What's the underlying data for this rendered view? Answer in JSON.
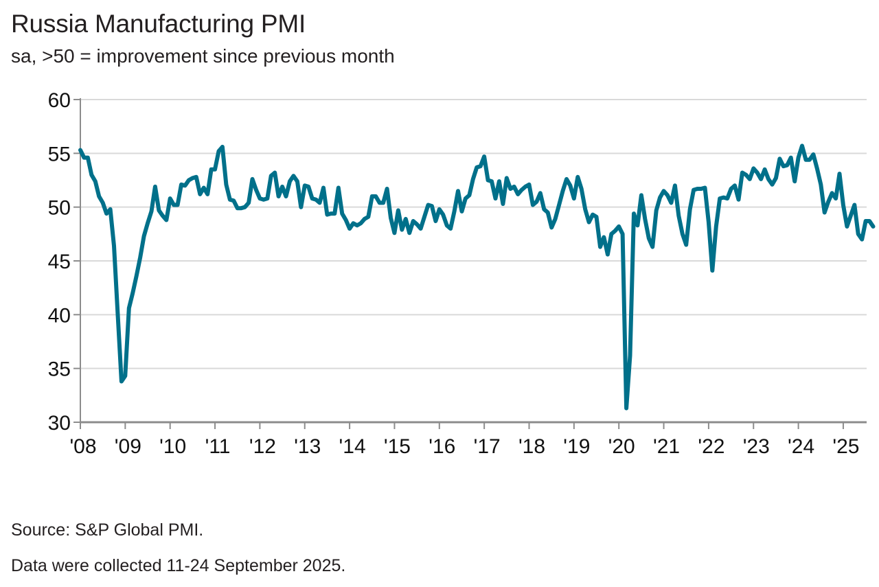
{
  "header": {
    "title": "Russia Manufacturing PMI",
    "subtitle": "sa, >50 = improvement since previous month"
  },
  "footer": {
    "source": "Source: S&P Global PMI.",
    "collection_note": "Data were collected 11-24 September 2025."
  },
  "colors": {
    "series_line": "#00708a",
    "gridline": "#d9d9d9",
    "axis": "#8c8c8c",
    "text": "#231f20"
  },
  "chart_data": {
    "type": "line",
    "title": "Russia Manufacturing PMI",
    "subtitle": "sa, >50 = improvement since previous month",
    "xlabel": "",
    "ylabel": "",
    "ylim": [
      30,
      60
    ],
    "yticks": [
      30,
      35,
      40,
      45,
      50,
      55,
      60
    ],
    "ytick_labels": [
      "30",
      "35",
      "40",
      "45",
      "50",
      "55",
      "60"
    ],
    "xtick_labels": [
      "'08",
      "'09",
      "'10",
      "'11",
      "'12",
      "'13",
      "'14",
      "'15",
      "'16",
      "'17",
      "'18",
      "'19",
      "'20",
      "'21",
      "'22",
      "'23",
      "'24",
      "'25"
    ],
    "x_start": "2008-01",
    "x_end": "2025-09",
    "frequency": "monthly",
    "grid": "horizontal",
    "legend": "none",
    "series": [
      {
        "name": "Russia Manufacturing PMI",
        "values": [
          55.3,
          54.6,
          54.6,
          53.0,
          52.4,
          51.0,
          50.4,
          49.4,
          49.8,
          46.4,
          40.0,
          33.8,
          34.3,
          40.6,
          42.0,
          43.6,
          45.3,
          47.3,
          48.5,
          49.6,
          51.9,
          49.7,
          49.2,
          48.8,
          50.8,
          50.2,
          50.2,
          52.1,
          52.0,
          52.5,
          52.7,
          52.8,
          51.2,
          51.8,
          51.2,
          53.5,
          53.5,
          55.2,
          55.6,
          52.1,
          50.7,
          50.6,
          49.9,
          49.9,
          50.0,
          50.4,
          52.6,
          51.6,
          50.8,
          50.7,
          50.8,
          52.9,
          53.2,
          51.0,
          51.9,
          51.0,
          52.4,
          52.9,
          52.4,
          50.0,
          52.0,
          51.9,
          50.8,
          50.7,
          50.4,
          51.8,
          49.3,
          49.4,
          49.4,
          51.8,
          49.4,
          48.8,
          48.0,
          48.5,
          48.3,
          48.5,
          48.9,
          49.1,
          51.0,
          51.0,
          50.4,
          50.4,
          51.7,
          49.0,
          47.6,
          49.7,
          47.9,
          48.9,
          47.6,
          48.7,
          48.4,
          48.0,
          49.1,
          50.2,
          50.1,
          48.7,
          49.8,
          49.3,
          48.3,
          48.0,
          49.6,
          51.5,
          49.6,
          50.8,
          51.1,
          52.6,
          53.7,
          53.8,
          54.7,
          52.5,
          52.4,
          50.8,
          52.4,
          50.3,
          52.7,
          51.7,
          51.9,
          51.2,
          51.6,
          51.9,
          52.1,
          50.2,
          50.5,
          51.3,
          49.8,
          49.5,
          48.1,
          48.9,
          50.2,
          51.5,
          52.6,
          52.0,
          50.8,
          52.8,
          51.7,
          49.8,
          48.6,
          49.3,
          49.1,
          46.3,
          47.2,
          45.6,
          47.5,
          47.8,
          48.2,
          47.5,
          31.3,
          36.2,
          49.4,
          48.3,
          51.1,
          48.9,
          47.1,
          46.3,
          49.7,
          50.9,
          51.5,
          51.1,
          50.4,
          52.0,
          49.2,
          47.5,
          46.5,
          49.8,
          51.6,
          51.7,
          51.7,
          51.8,
          48.6,
          44.1,
          48.2,
          50.8,
          50.9,
          50.8,
          51.7,
          52.0,
          50.7,
          53.2,
          53.0,
          52.6,
          53.6,
          53.2,
          52.6,
          53.5,
          52.6,
          52.1,
          52.7,
          54.5,
          53.8,
          53.9,
          54.6,
          52.4,
          54.6,
          55.7,
          54.4,
          54.4,
          54.9,
          53.6,
          52.1,
          49.5,
          50.5,
          51.3,
          50.8,
          53.1,
          50.2,
          48.2,
          49.2,
          50.2,
          47.5,
          47.0,
          48.7,
          48.7,
          48.2
        ]
      }
    ]
  }
}
